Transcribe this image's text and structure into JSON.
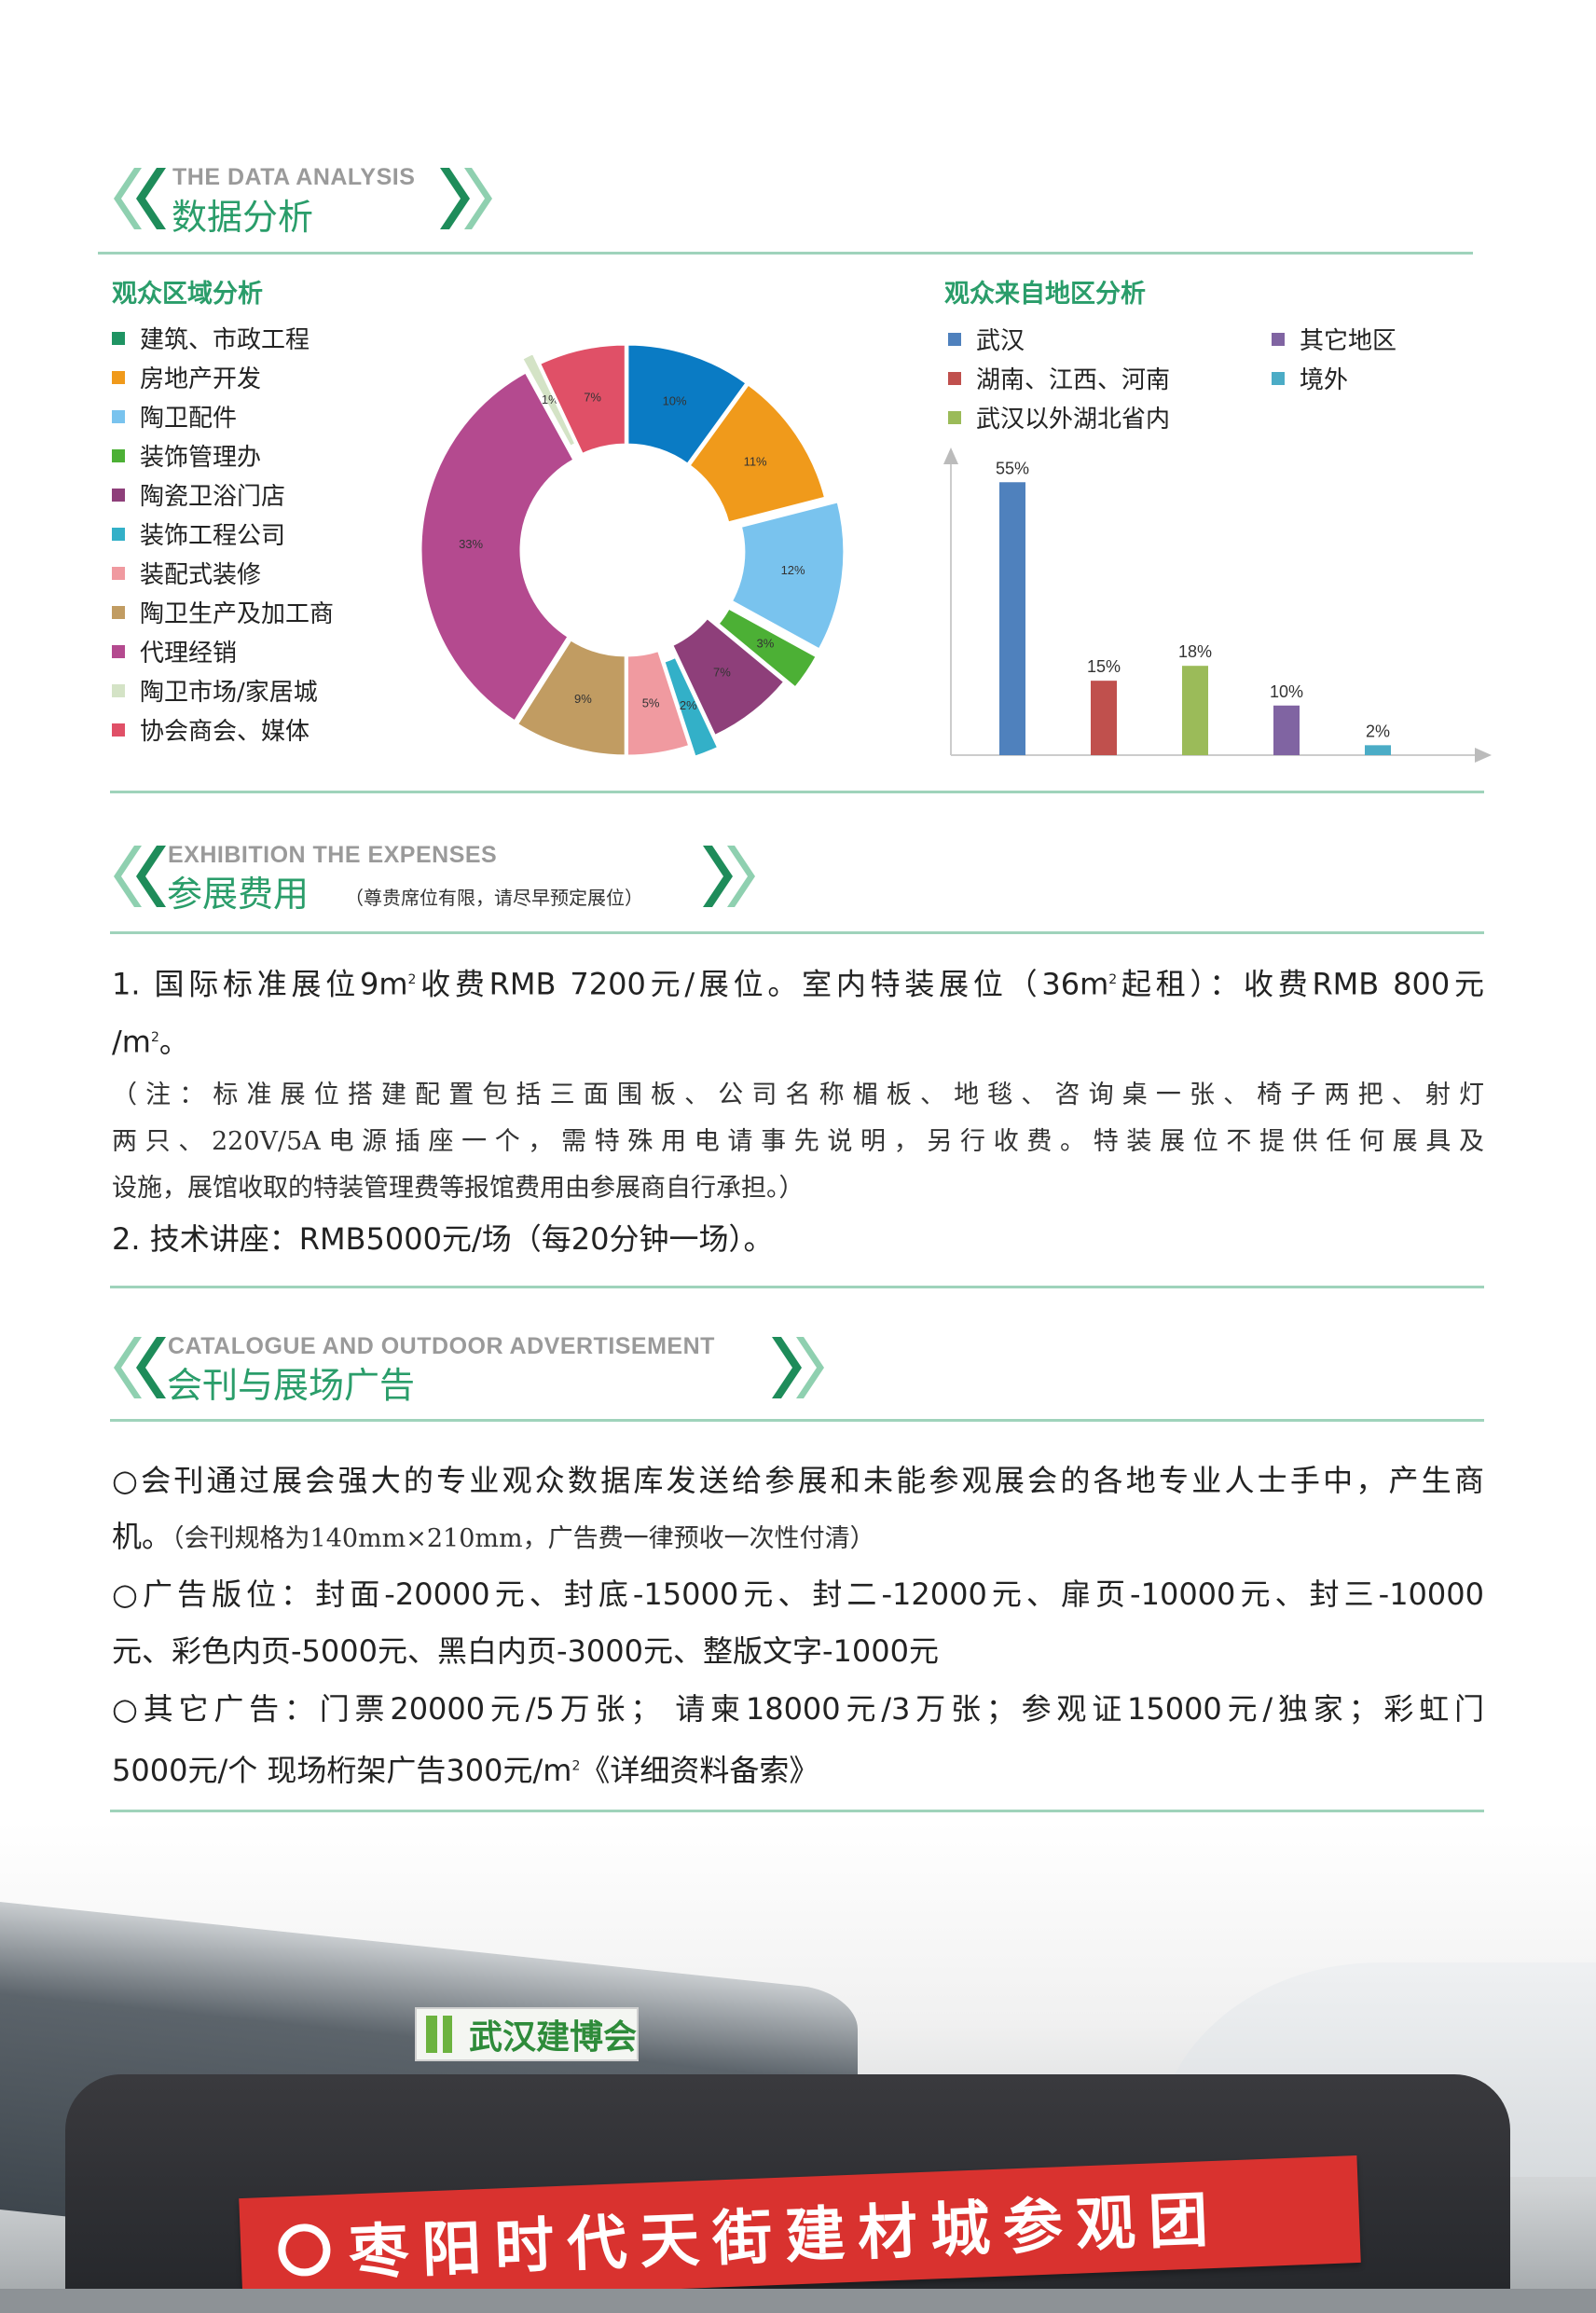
{
  "sections": {
    "data_analysis": {
      "en": "THE DATA ANALYSIS",
      "cn": "数据分析"
    },
    "expenses": {
      "en": "EXHIBITION THE EXPENSES",
      "cn": "参展费用",
      "note": "（尊贵席位有限，请尽早预定展位）"
    },
    "advert": {
      "en": "CATALOGUE AND OUTDOOR ADVERTISEMENT",
      "cn": "会刊与展场广告"
    }
  },
  "colors": {
    "accent": "#2a9d6a",
    "rule": "#9fd3bb",
    "chevron_dark": "#1e8c5a",
    "chevron_light": "#8fd0b0"
  },
  "chart_data": [
    {
      "type": "pie",
      "variant": "donut",
      "title": "观众区域分析",
      "categories": [
        "建筑、市政工程",
        "房地产开发",
        "陶卫配件",
        "装饰管理办",
        "陶瓷卫浴门店",
        "装饰工程公司",
        "装配式装修",
        "陶卫生产及加工商",
        "代理经销",
        "陶卫市场/家居城",
        "协会商会、媒体"
      ],
      "values": [
        10,
        11,
        12,
        3,
        7,
        2,
        5,
        9,
        33,
        1,
        7
      ],
      "labels": [
        "10%",
        "11%",
        "12%",
        "3%",
        "7%",
        "2%",
        "5%",
        "9%",
        "33%",
        "1%",
        "7%"
      ],
      "legend_colors": [
        "#1f9463",
        "#f09a1b",
        "#79c3ee",
        "#4cb035",
        "#8e3f7a",
        "#33b0c8",
        "#f09aa0",
        "#c19c62",
        "#b44a8f",
        "#d4e3c6",
        "#e05067"
      ],
      "slice_colors": [
        "#0a7bc4",
        "#f09a1b",
        "#79c3ee",
        "#4cb035",
        "#8e3f7a",
        "#33b0c8",
        "#f09aa0",
        "#c19c62",
        "#b44a8f",
        "#d4e3c6",
        "#e05067"
      ],
      "exploded": [
        false,
        false,
        true,
        true,
        false,
        true,
        false,
        false,
        false,
        true,
        false
      ],
      "legend": "left"
    },
    {
      "type": "bar",
      "title": "观众来自地区分析",
      "categories": [
        "武汉",
        "湖南、江西、河南",
        "武汉以外湖北省内",
        "其它地区",
        "境外"
      ],
      "values": [
        55,
        15,
        18,
        10,
        2
      ],
      "labels": [
        "55%",
        "15%",
        "18%",
        "10%",
        "2%"
      ],
      "colors": [
        "#4f81bd",
        "#c0504d",
        "#9bbb59",
        "#8064a2",
        "#4bacc6"
      ],
      "ylim": [
        0,
        62
      ],
      "grid": false,
      "legend": "top"
    }
  ],
  "expenses": {
    "item1_line1_a": "1.  国际标准展位9m",
    "item1_line1_b": "收费RMB 7200元/展位。室内特装展位（36m",
    "item1_line1_c": "起租）：收费RMB 800元",
    "item1_line2": "/m",
    "item1_line2_end": "。",
    "sup": "2",
    "note_lines": [
      "（注：标准展位搭建配置包括三面围板、公司名称楣板、地毯、咨询桌一张、椅子两把、射灯",
      "两只、220V/5A电源插座一个，需特殊用电请事先说明，另行收费。特装展位不提供任何展具及",
      "设施，展馆收取的特装管理费等报馆费用由参展商自行承担。）"
    ],
    "item2": "2.  技术讲座：RMB5000元/场（每20分钟一场）。"
  },
  "advert": {
    "p1_line1": "○会刊通过展会强大的专业观众数据库发送给参展和未能参观展会的各地专业人士手中，产生商",
    "p1_line2_a": "机。",
    "p1_line2_b": "（会刊规格为140mm×210mm，广告费一律预收一次性付清）",
    "p2_line1": "○广告版位：封面-20000元、封底-15000元、封二-12000元、扉页-10000元、封三-10000",
    "p2_line2": "元、彩色内页-5000元、黑白内页-3000元、整版文字-1000元",
    "p3_line1": "○其它广告：门票20000元/5万张； 请柬18000元/3万张；参观证15000元/独家；彩虹门",
    "p3_line2_a": "5000元/个   现场桁架广告300元/m",
    "p3_line2_b": "《详细资料备索》",
    "sup": "2"
  },
  "photo": {
    "banner_text": "枣阳时代天街建材城参观团",
    "venue_sign": "武汉建博会"
  }
}
